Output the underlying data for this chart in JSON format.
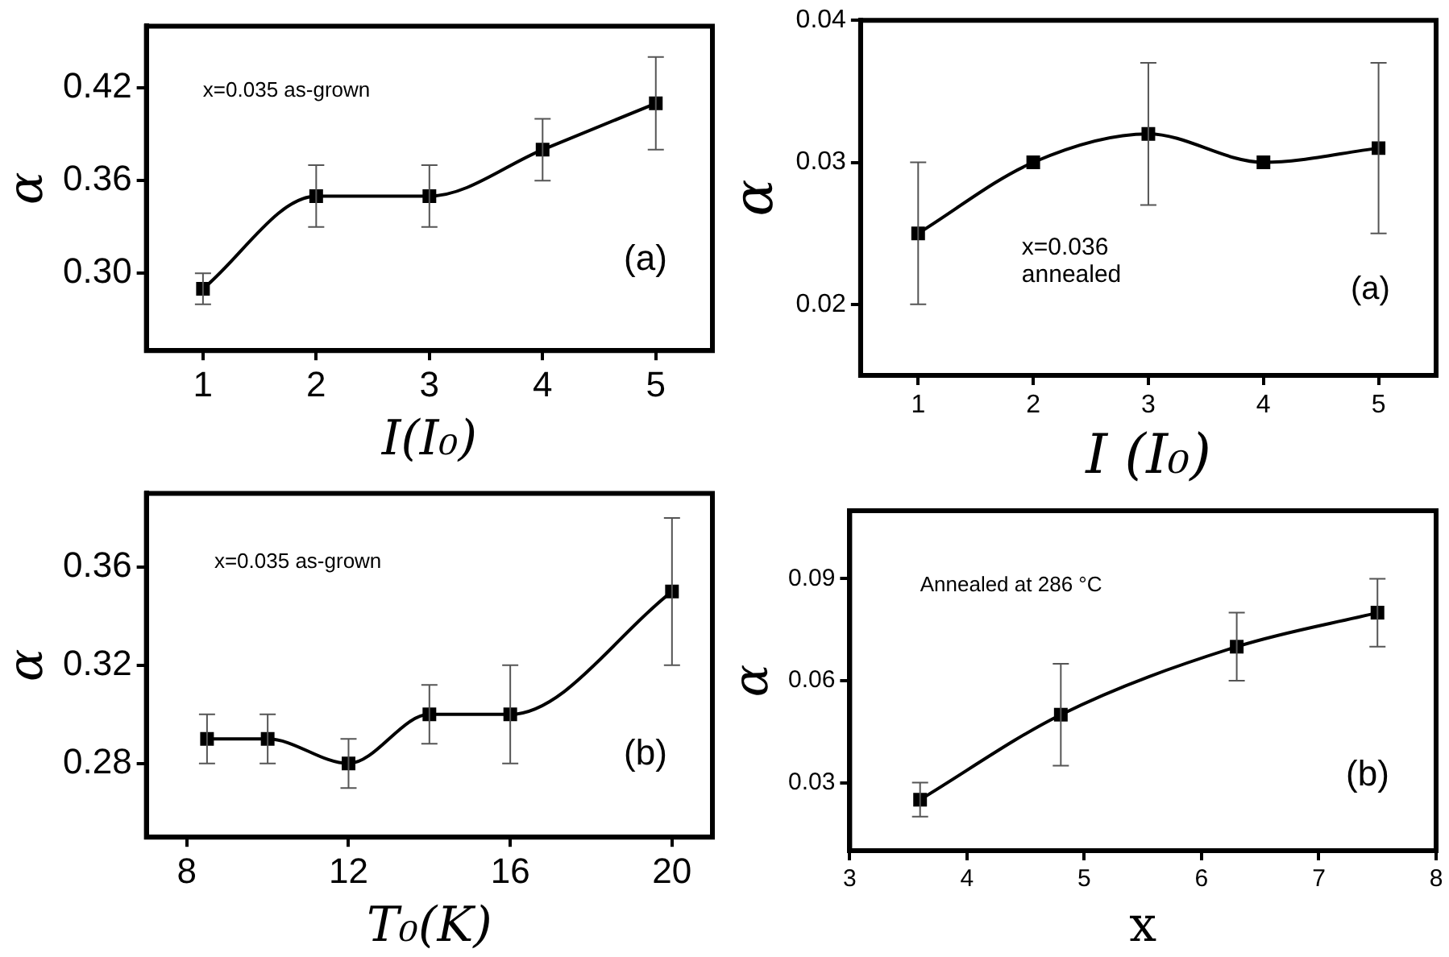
{
  "chart_data": [
    {
      "type": "line",
      "xlabel": "I(I₀)",
      "ylabel": "α",
      "x": [
        1,
        2,
        3,
        4,
        5
      ],
      "values": [
        0.29,
        0.35,
        0.35,
        0.38,
        0.41
      ],
      "errors": [
        0.01,
        0.02,
        0.02,
        0.02,
        0.03
      ],
      "color": "#000000",
      "marker": "square",
      "xlim": [
        0.5,
        5.5
      ],
      "ylim": [
        0.25,
        0.46
      ],
      "xticks": [
        1,
        2,
        3,
        4,
        5
      ],
      "yticks": [
        {
          "value": 0.3,
          "label": "0.30"
        },
        0.36,
        0.42
      ],
      "annotations": [
        "x=0.035 as-grown",
        "(a)"
      ]
    },
    {
      "type": "line",
      "xlabel": "I (I₀)",
      "ylabel": "α",
      "x": [
        1,
        2,
        3,
        4,
        5
      ],
      "values": [
        0.025,
        0.03,
        0.032,
        0.03,
        0.031
      ],
      "errors": [
        0.005,
        null,
        0.005,
        null,
        0.006
      ],
      "color": "#000000",
      "marker": "square",
      "xlim": [
        0.5,
        5.5
      ],
      "ylim": [
        0.015,
        0.04
      ],
      "xticks": [
        1,
        2,
        3,
        4,
        5
      ],
      "yticks": [
        0.02,
        0.03,
        0.04
      ],
      "annotations": [
        "x=0.036 annealed",
        "(a)"
      ]
    },
    {
      "type": "line",
      "xlabel": "T₀(K)",
      "ylabel": "α",
      "x": [
        8.5,
        10,
        12,
        14,
        16,
        20
      ],
      "values": [
        0.29,
        0.29,
        0.28,
        0.3,
        0.3,
        0.35
      ],
      "errors": [
        0.01,
        0.01,
        0.01,
        0.012,
        0.02,
        0.03
      ],
      "color": "#000000",
      "marker": "square",
      "xlim": [
        7,
        21
      ],
      "ylim": [
        0.25,
        0.39
      ],
      "xticks": [
        8,
        12,
        16,
        20
      ],
      "yticks": [
        0.28,
        0.32,
        0.36
      ],
      "annotations": [
        "x=0.035 as-grown",
        "(b)"
      ]
    },
    {
      "type": "line",
      "xlabel": "x",
      "ylabel": "α",
      "x": [
        3.6,
        4.8,
        6.3,
        7.5
      ],
      "values": [
        0.025,
        0.05,
        0.07,
        0.08
      ],
      "errors": [
        0.005,
        0.015,
        0.01,
        0.01
      ],
      "color": "#000000",
      "marker": "square",
      "xlim": [
        3,
        8
      ],
      "ylim": [
        0.01,
        0.11
      ],
      "xticks": [
        3,
        4,
        5,
        6,
        7,
        8
      ],
      "yticks": [
        0.03,
        0.06,
        0.09
      ],
      "annotations": [
        "Annealed at 286 °C",
        "(b)"
      ]
    }
  ]
}
